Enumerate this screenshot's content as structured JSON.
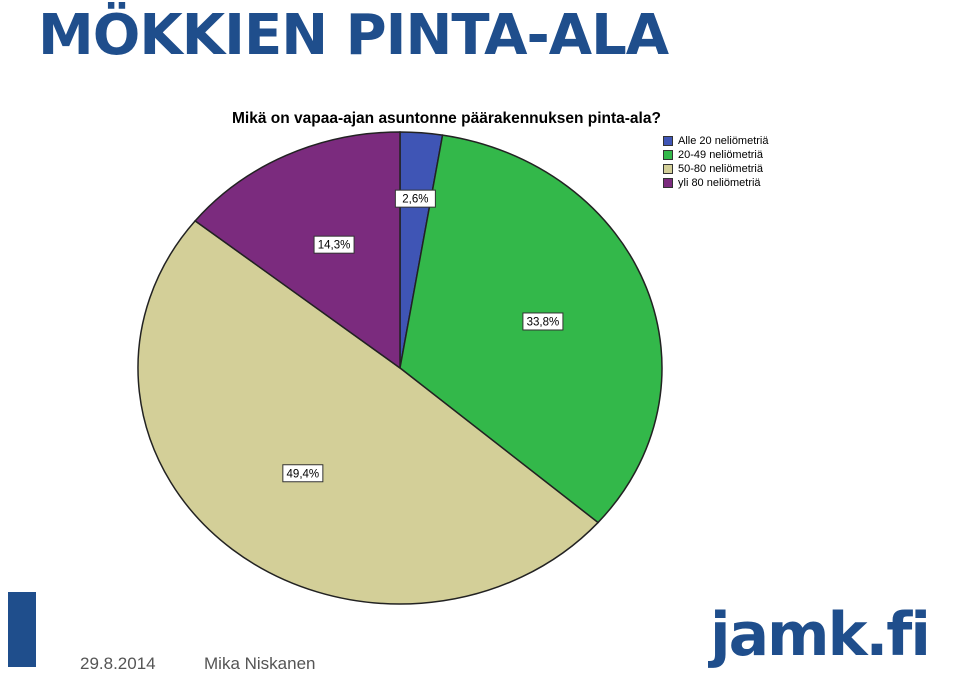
{
  "slide": {
    "title": "MÖKKIEN PINTA-ALA",
    "footer_date": "29.8.2014",
    "footer_author": "Mika Niskanen",
    "logo_text": "jamk.fi",
    "accent_color": "#1f4e8c"
  },
  "chart_data": {
    "type": "pie",
    "title": "Mikä on vapaa-ajan asuntonne päärakennuksen pinta-ala?",
    "legend_position": "top-right",
    "slices": [
      {
        "label": "Alle 20 neliömetriä",
        "value": 2.6,
        "display": "2,6%",
        "color": "#3f55b5"
      },
      {
        "label": "20-49 neliömetriä",
        "value": 33.8,
        "display": "33,8%",
        "color": "#33b84a"
      },
      {
        "label": "50-80 neliömetriä",
        "value": 49.4,
        "display": "49,4%",
        "color": "#d3cf98"
      },
      {
        "label": "yli 80 neliömetriä",
        "value": 14.3,
        "display": "14,3%",
        "color": "#7b2b7e"
      }
    ]
  }
}
